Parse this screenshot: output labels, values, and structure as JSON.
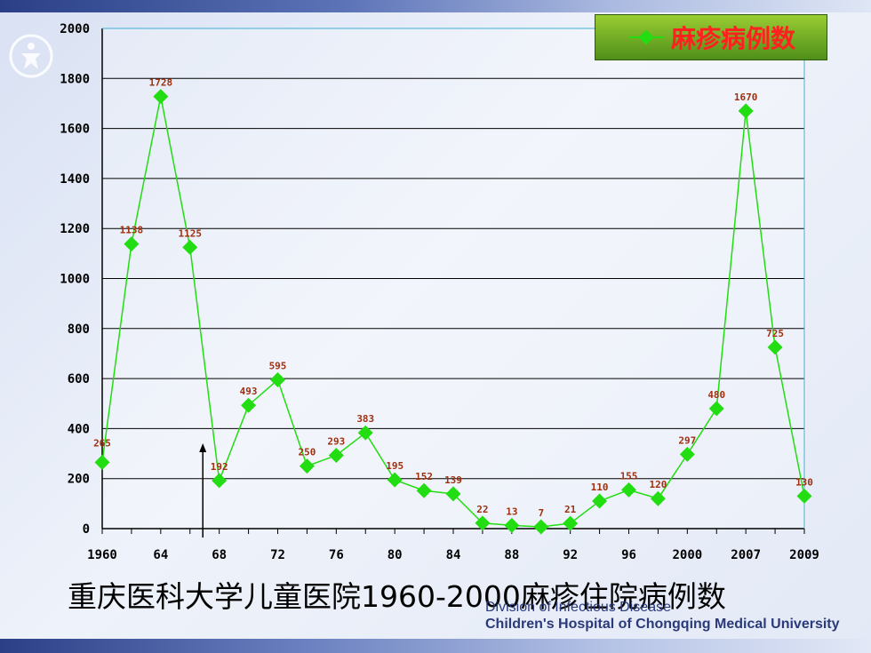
{
  "caption": "重庆医科大学儿童医院1960-2000麻疹住院病例数",
  "footer": {
    "department": "Division of Infectious Disease",
    "hospital": "Children's Hospital of Chongqing Medical University"
  },
  "colors": {
    "series": "#22dd11",
    "marker": "#22dd11",
    "label": "#a03010",
    "legend_text": "#ff2020",
    "grid": "#000000"
  },
  "chart_data": {
    "type": "line",
    "series": [
      {
        "name": "麻疹病例数",
        "values": [
          265,
          1138,
          1728,
          1125,
          192,
          493,
          595,
          250,
          293,
          383,
          195,
          152,
          139,
          22,
          13,
          7,
          21,
          110,
          155,
          120,
          297,
          480,
          1670,
          725,
          130
        ]
      }
    ],
    "x_tick_labels": [
      "1960",
      "64",
      "68",
      "72",
      "76",
      "80",
      "84",
      "88",
      "92",
      "96",
      "2000",
      "2007",
      "2009"
    ],
    "y_ticks": [
      0,
      200,
      400,
      600,
      800,
      1000,
      1200,
      1400,
      1600,
      1800,
      2000
    ],
    "ylim": [
      0,
      2000
    ],
    "grid": true,
    "legend_position": "top-right",
    "annotation": "arrow near 1966"
  }
}
